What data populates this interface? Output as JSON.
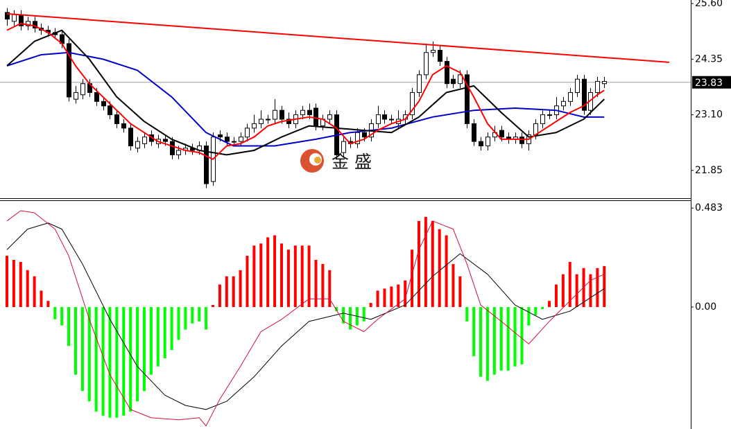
{
  "chart_data": [
    {
      "type": "candlestick",
      "xlim": [
        -1.01,
        99.6
      ],
      "ylim": [
        21.24,
        25.68
      ],
      "yticks": [
        {
          "value": 25.6,
          "label": "25.60"
        },
        {
          "value": 24.35,
          "label": "24.35"
        },
        {
          "value": 23.1,
          "label": "23.10"
        },
        {
          "value": 21.85,
          "label": "21.85"
        }
      ],
      "up_color": "#ffffff",
      "down_color": "#000000",
      "open": [
        25.4,
        25.2,
        25.35,
        25.1,
        25.2,
        25.05,
        25.0,
        24.95,
        24.9,
        24.7,
        23.45,
        23.55,
        23.8,
        23.6,
        23.4,
        23.3,
        23.1,
        22.9,
        22.8,
        22.35,
        22.45,
        22.65,
        22.45,
        22.55,
        22.5,
        22.2,
        22.3,
        22.35,
        22.3,
        22.4,
        21.6,
        22.65,
        22.6,
        22.5,
        22.5,
        22.6,
        22.8,
        22.9,
        23.0,
        23.0,
        23.2,
        23.0,
        22.9,
        23.1,
        23.2,
        23.25,
        22.85,
        23.0,
        23.1,
        22.25,
        22.5,
        22.45,
        22.7,
        22.6,
        22.9,
        23.1,
        23.0,
        22.9,
        23.0,
        23.1,
        23.6,
        24.0,
        24.5,
        24.55,
        24.3,
        23.9,
        23.8,
        24.0,
        22.9,
        22.5,
        22.4,
        22.6,
        22.75,
        22.6,
        22.55,
        22.6,
        22.45,
        22.65,
        22.9,
        23.1,
        23.1,
        23.3,
        23.4,
        23.6,
        23.9,
        23.2,
        23.6,
        23.8
      ],
      "high": [
        25.5,
        25.45,
        25.45,
        25.3,
        25.3,
        25.15,
        25.1,
        25.05,
        25.0,
        24.8,
        23.75,
        23.9,
        23.9,
        23.7,
        23.5,
        23.4,
        23.2,
        23.0,
        22.9,
        22.6,
        22.7,
        22.75,
        22.65,
        22.65,
        22.6,
        22.4,
        22.45,
        22.45,
        22.5,
        22.5,
        22.7,
        22.75,
        22.7,
        22.6,
        22.7,
        22.9,
        23.1,
        23.2,
        23.1,
        23.45,
        23.3,
        23.15,
        23.2,
        23.3,
        23.35,
        23.35,
        23.1,
        23.2,
        23.2,
        22.6,
        22.6,
        22.8,
        22.8,
        23.0,
        23.3,
        23.2,
        23.1,
        23.2,
        23.2,
        23.7,
        24.1,
        24.7,
        24.75,
        24.65,
        24.4,
        24.0,
        24.1,
        24.1,
        23.0,
        22.6,
        22.7,
        22.85,
        22.85,
        22.7,
        22.7,
        22.7,
        22.75,
        23.0,
        23.2,
        23.2,
        23.5,
        23.5,
        23.7,
        24.0,
        24.0,
        23.7,
        23.95,
        23.95
      ],
      "low": [
        25.1,
        25.1,
        25.0,
        25.0,
        24.95,
        24.9,
        24.85,
        24.8,
        24.6,
        23.4,
        23.35,
        23.45,
        23.5,
        23.3,
        23.2,
        23.0,
        22.8,
        22.7,
        22.3,
        22.25,
        22.35,
        22.4,
        22.35,
        22.4,
        22.1,
        22.1,
        22.2,
        22.2,
        22.2,
        21.45,
        21.5,
        22.5,
        22.4,
        22.4,
        22.4,
        22.5,
        22.7,
        22.8,
        22.9,
        22.9,
        22.9,
        22.8,
        22.8,
        23.0,
        23.0,
        22.75,
        22.75,
        22.9,
        22.1,
        22.15,
        22.35,
        22.35,
        22.5,
        22.5,
        22.8,
        22.9,
        22.9,
        22.8,
        22.9,
        23.0,
        23.5,
        23.9,
        24.4,
        24.2,
        23.7,
        23.7,
        23.7,
        22.8,
        22.4,
        22.3,
        22.3,
        22.5,
        22.5,
        22.45,
        22.45,
        22.35,
        22.3,
        22.55,
        22.8,
        23.0,
        23.0,
        23.2,
        23.3,
        23.5,
        23.1,
        23.1,
        23.5,
        23.7
      ],
      "close": [
        25.25,
        25.35,
        25.1,
        25.2,
        25.05,
        25.0,
        24.95,
        24.9,
        24.7,
        23.5,
        23.6,
        23.8,
        23.6,
        23.4,
        23.3,
        23.1,
        22.9,
        22.8,
        22.4,
        22.5,
        22.6,
        22.5,
        22.55,
        22.5,
        22.2,
        22.3,
        22.35,
        22.3,
        22.4,
        21.55,
        22.6,
        22.6,
        22.5,
        22.5,
        22.6,
        22.8,
        22.9,
        23.0,
        23.0,
        23.2,
        23.0,
        22.9,
        23.1,
        23.2,
        23.1,
        22.85,
        23.0,
        23.1,
        22.2,
        22.5,
        22.45,
        22.7,
        22.6,
        22.9,
        23.1,
        23.0,
        23.0,
        23.0,
        23.1,
        23.6,
        24.0,
        24.5,
        24.55,
        24.3,
        23.8,
        23.8,
        24.0,
        22.9,
        22.5,
        22.4,
        22.6,
        22.7,
        22.6,
        22.55,
        22.6,
        22.45,
        22.65,
        22.9,
        23.1,
        23.1,
        23.3,
        23.4,
        23.6,
        23.9,
        23.2,
        23.6,
        23.85,
        23.85
      ],
      "series": [
        {
          "color": "#0000c8",
          "x": [
            0,
            5,
            9,
            14,
            19,
            24,
            29,
            33,
            39,
            45,
            50,
            56,
            62,
            68,
            74,
            80,
            84,
            87
          ],
          "values": [
            24.2,
            24.45,
            24.5,
            24.35,
            24.1,
            23.5,
            22.7,
            22.4,
            22.4,
            22.55,
            22.7,
            22.8,
            23.05,
            23.2,
            23.25,
            23.2,
            23.05,
            23.05
          ]
        },
        {
          "color": "#000000",
          "x": [
            0,
            4,
            8,
            12,
            16,
            20,
            24,
            28,
            32,
            36,
            40,
            44,
            48,
            52,
            56,
            60,
            64,
            68,
            72,
            76,
            80,
            84,
            87
          ],
          "values": [
            24.2,
            24.75,
            25.0,
            24.35,
            23.5,
            22.95,
            22.55,
            22.3,
            22.2,
            22.3,
            22.6,
            22.85,
            22.8,
            22.75,
            22.7,
            23.05,
            23.6,
            23.75,
            23.15,
            22.6,
            22.7,
            23.0,
            23.45
          ]
        },
        {
          "color": "#ff0000",
          "x": [
            0,
            2,
            4,
            6,
            8,
            10,
            12,
            14,
            16,
            18,
            20,
            22,
            24,
            26,
            28,
            30,
            32,
            34,
            36,
            38,
            40,
            42,
            44,
            46,
            48,
            50,
            52,
            54,
            56,
            58,
            60,
            62,
            64,
            66,
            68,
            70,
            72,
            74,
            76,
            78,
            80,
            82,
            84,
            86,
            87
          ],
          "values": [
            25.0,
            25.15,
            25.1,
            24.95,
            24.7,
            24.2,
            23.8,
            23.5,
            23.2,
            22.9,
            22.7,
            22.5,
            22.4,
            22.3,
            22.25,
            22.1,
            22.4,
            22.45,
            22.6,
            22.85,
            22.95,
            23.0,
            23.05,
            23.0,
            22.8,
            22.45,
            22.55,
            22.75,
            22.9,
            23.0,
            23.4,
            24.0,
            24.2,
            24.05,
            23.5,
            22.9,
            22.55,
            22.55,
            22.55,
            22.75,
            22.95,
            23.15,
            23.3,
            23.55,
            23.65
          ]
        }
      ],
      "trendline": {
        "color": "#ff0000",
        "x": [
          0,
          96.46
        ],
        "values": [
          25.37,
          24.28
        ]
      },
      "last_price": {
        "value": 23.83,
        "label": "23.83"
      },
      "watermark": "金 盛"
    },
    {
      "type": "macd",
      "xlim": [
        -1.01,
        99.6
      ],
      "ylim": [
        -0.595,
        0.514
      ],
      "yticks": [
        0.483,
        {
          "value": 0,
          "label": "0.00"
        }
      ],
      "up_color": "#ff0000",
      "down_color": "#00ff00",
      "histogram": [
        0.25,
        0.23,
        0.22,
        0.18,
        0.15,
        0.08,
        0.03,
        -0.06,
        -0.09,
        -0.19,
        -0.33,
        -0.41,
        -0.46,
        -0.51,
        -0.53,
        -0.54,
        -0.54,
        -0.53,
        -0.51,
        -0.46,
        -0.41,
        -0.33,
        -0.29,
        -0.25,
        -0.21,
        -0.16,
        -0.11,
        -0.08,
        -0.07,
        -0.11,
        0.01,
        0.11,
        0.15,
        0.15,
        0.18,
        0.25,
        0.3,
        0.31,
        0.34,
        0.35,
        0.31,
        0.28,
        0.3,
        0.3,
        0.3,
        0.23,
        0.21,
        0.18,
        -0.02,
        -0.08,
        -0.11,
        -0.09,
        -0.07,
        0.02,
        0.08,
        0.09,
        0.1,
        0.11,
        0.13,
        0.28,
        0.42,
        0.44,
        0.42,
        0.38,
        0.35,
        0.21,
        0.15,
        -0.07,
        -0.24,
        -0.34,
        -0.36,
        -0.33,
        -0.31,
        -0.31,
        -0.29,
        -0.28,
        -0.09,
        -0.04,
        -0.01,
        0.03,
        0.11,
        0.16,
        0.22,
        0.16,
        0.19,
        0.16,
        0.19,
        0.2
      ],
      "series": [
        {
          "color": "#000000",
          "x": [
            0,
            3,
            6,
            8,
            11,
            15,
            19,
            23,
            26,
            29,
            32,
            36,
            40,
            44,
            49,
            53,
            58,
            62,
            66,
            70,
            74,
            78,
            82,
            87
          ],
          "values": [
            0.28,
            0.38,
            0.41,
            0.38,
            0.21,
            -0.06,
            -0.29,
            -0.43,
            -0.48,
            -0.5,
            -0.46,
            -0.34,
            -0.19,
            -0.07,
            -0.03,
            -0.06,
            0.01,
            0.15,
            0.26,
            0.16,
            0.01,
            -0.06,
            -0.02,
            0.09
          ]
        },
        {
          "color": "#d0103a",
          "x": [
            0,
            2,
            4,
            7,
            9,
            12,
            15,
            18,
            21,
            25,
            28,
            29,
            31,
            34,
            37,
            40,
            44,
            47,
            49,
            52,
            54,
            58,
            60,
            62,
            65,
            67,
            69,
            72,
            76,
            79,
            82,
            85,
            87
          ],
          "values": [
            0.42,
            0.47,
            0.46,
            0.38,
            0.25,
            -0.06,
            -0.33,
            -0.5,
            -0.54,
            -0.55,
            -0.54,
            -0.58,
            -0.45,
            -0.29,
            -0.12,
            -0.06,
            0.04,
            0.04,
            -0.07,
            -0.12,
            -0.06,
            0.04,
            0.28,
            0.42,
            0.38,
            0.21,
            0.01,
            -0.07,
            -0.18,
            -0.07,
            0.03,
            0.13,
            0.16
          ]
        }
      ]
    }
  ]
}
